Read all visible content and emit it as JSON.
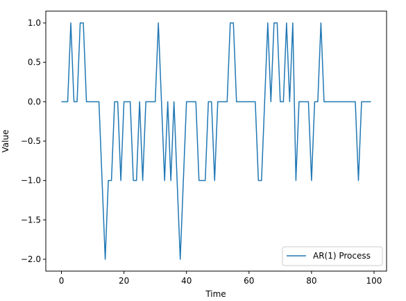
{
  "chart_data": {
    "type": "line",
    "title": "",
    "xlabel": "Time",
    "ylabel": "Value",
    "xlim": [
      -5,
      104
    ],
    "ylim": [
      -2.15,
      1.15
    ],
    "xticks": [
      0,
      20,
      40,
      60,
      80,
      100
    ],
    "yticks": [
      -2.0,
      -1.5,
      -1.0,
      -0.5,
      0.0,
      0.5,
      1.0
    ],
    "ytick_labels": [
      "−2.0",
      "−1.5",
      "−1.0",
      "−0.5",
      "0.0",
      "0.5",
      "1.0"
    ],
    "grid": false,
    "legend": {
      "placement": "lower-right",
      "entries": [
        "AR(1) Process"
      ]
    },
    "series": [
      {
        "name": "AR(1) Process",
        "color": "#1f77b4",
        "x": [
          0,
          1,
          2,
          3,
          4,
          5,
          6,
          7,
          8,
          9,
          10,
          11,
          12,
          13,
          14,
          15,
          16,
          17,
          18,
          19,
          20,
          21,
          22,
          23,
          24,
          25,
          26,
          27,
          28,
          29,
          30,
          31,
          32,
          33,
          34,
          35,
          36,
          37,
          38,
          39,
          40,
          41,
          42,
          43,
          44,
          45,
          46,
          47,
          48,
          49,
          50,
          51,
          52,
          53,
          54,
          55,
          56,
          57,
          58,
          59,
          60,
          61,
          62,
          63,
          64,
          65,
          66,
          67,
          68,
          69,
          70,
          71,
          72,
          73,
          74,
          75,
          76,
          77,
          78,
          79,
          80,
          81,
          82,
          83,
          84,
          85,
          86,
          87,
          88,
          89,
          90,
          91,
          92,
          93,
          94,
          95,
          96,
          97,
          98,
          99
        ],
        "y": [
          0,
          0,
          0,
          1,
          0,
          0,
          1,
          1,
          0,
          0,
          0,
          0,
          0,
          -1,
          -2,
          -1,
          -1,
          0,
          0,
          -1,
          0,
          0,
          0,
          -1,
          -1,
          0,
          -1,
          0,
          0,
          0,
          0,
          1,
          0,
          -1,
          0,
          -1,
          0,
          -1,
          -2,
          -1,
          0,
          0,
          0,
          0,
          -1,
          -1,
          -1,
          0,
          0,
          -1,
          0,
          0,
          0,
          0,
          1,
          1,
          0,
          0,
          0,
          0,
          0,
          0,
          0,
          -1,
          -1,
          0,
          1,
          0,
          1,
          1,
          0,
          0,
          1,
          0,
          1,
          -1,
          0,
          0,
          0,
          0,
          -1,
          0,
          0,
          1,
          0,
          0,
          0,
          0,
          0,
          0,
          0,
          0,
          0,
          0,
          0,
          -1,
          0,
          0,
          0,
          0
        ]
      }
    ]
  }
}
